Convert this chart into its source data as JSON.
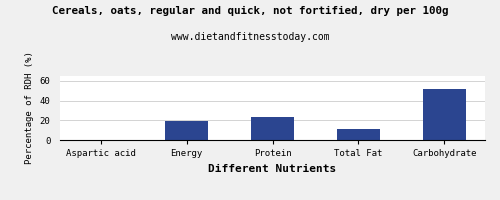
{
  "title": "Cereals, oats, regular and quick, not fortified, dry per 100g",
  "subtitle": "www.dietandfitnesstoday.com",
  "categories": [
    "Aspartic acid",
    "Energy",
    "Protein",
    "Total Fat",
    "Carbohydrate"
  ],
  "values": [
    0.5,
    19.0,
    23.0,
    11.0,
    52.0
  ],
  "bar_color": "#2b4590",
  "xlabel": "Different Nutrients",
  "ylabel": "Percentage of RDH (%)",
  "ylim": [
    0,
    65
  ],
  "yticks": [
    0,
    20,
    40,
    60
  ],
  "background_color": "#f0f0f0",
  "plot_bg_color": "#ffffff",
  "title_fontsize": 7.8,
  "subtitle_fontsize": 7.0,
  "tick_fontsize": 6.5,
  "xlabel_fontsize": 8.0,
  "ylabel_fontsize": 6.5
}
